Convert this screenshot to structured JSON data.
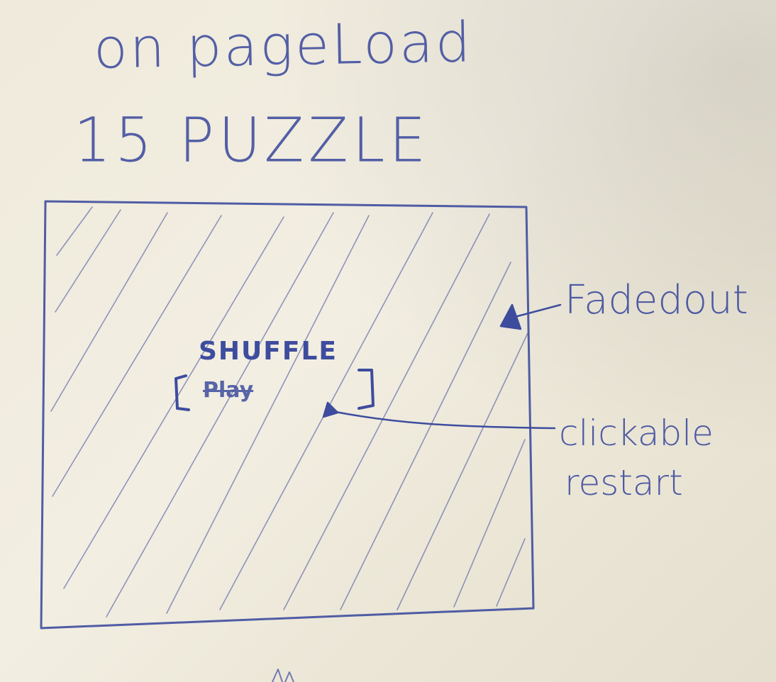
{
  "title": {
    "line1": "on pageLoad",
    "line2": "15 PUZZLE"
  },
  "overlay": {
    "button_label": "SHUFFLE",
    "button_inner": "Play"
  },
  "annotations": {
    "faded": "Fadedout",
    "clickable_line1": "clickable",
    "clickable_line2": "restart"
  },
  "colors": {
    "ink": "#3e4c9e",
    "paper": "#efeadb"
  }
}
